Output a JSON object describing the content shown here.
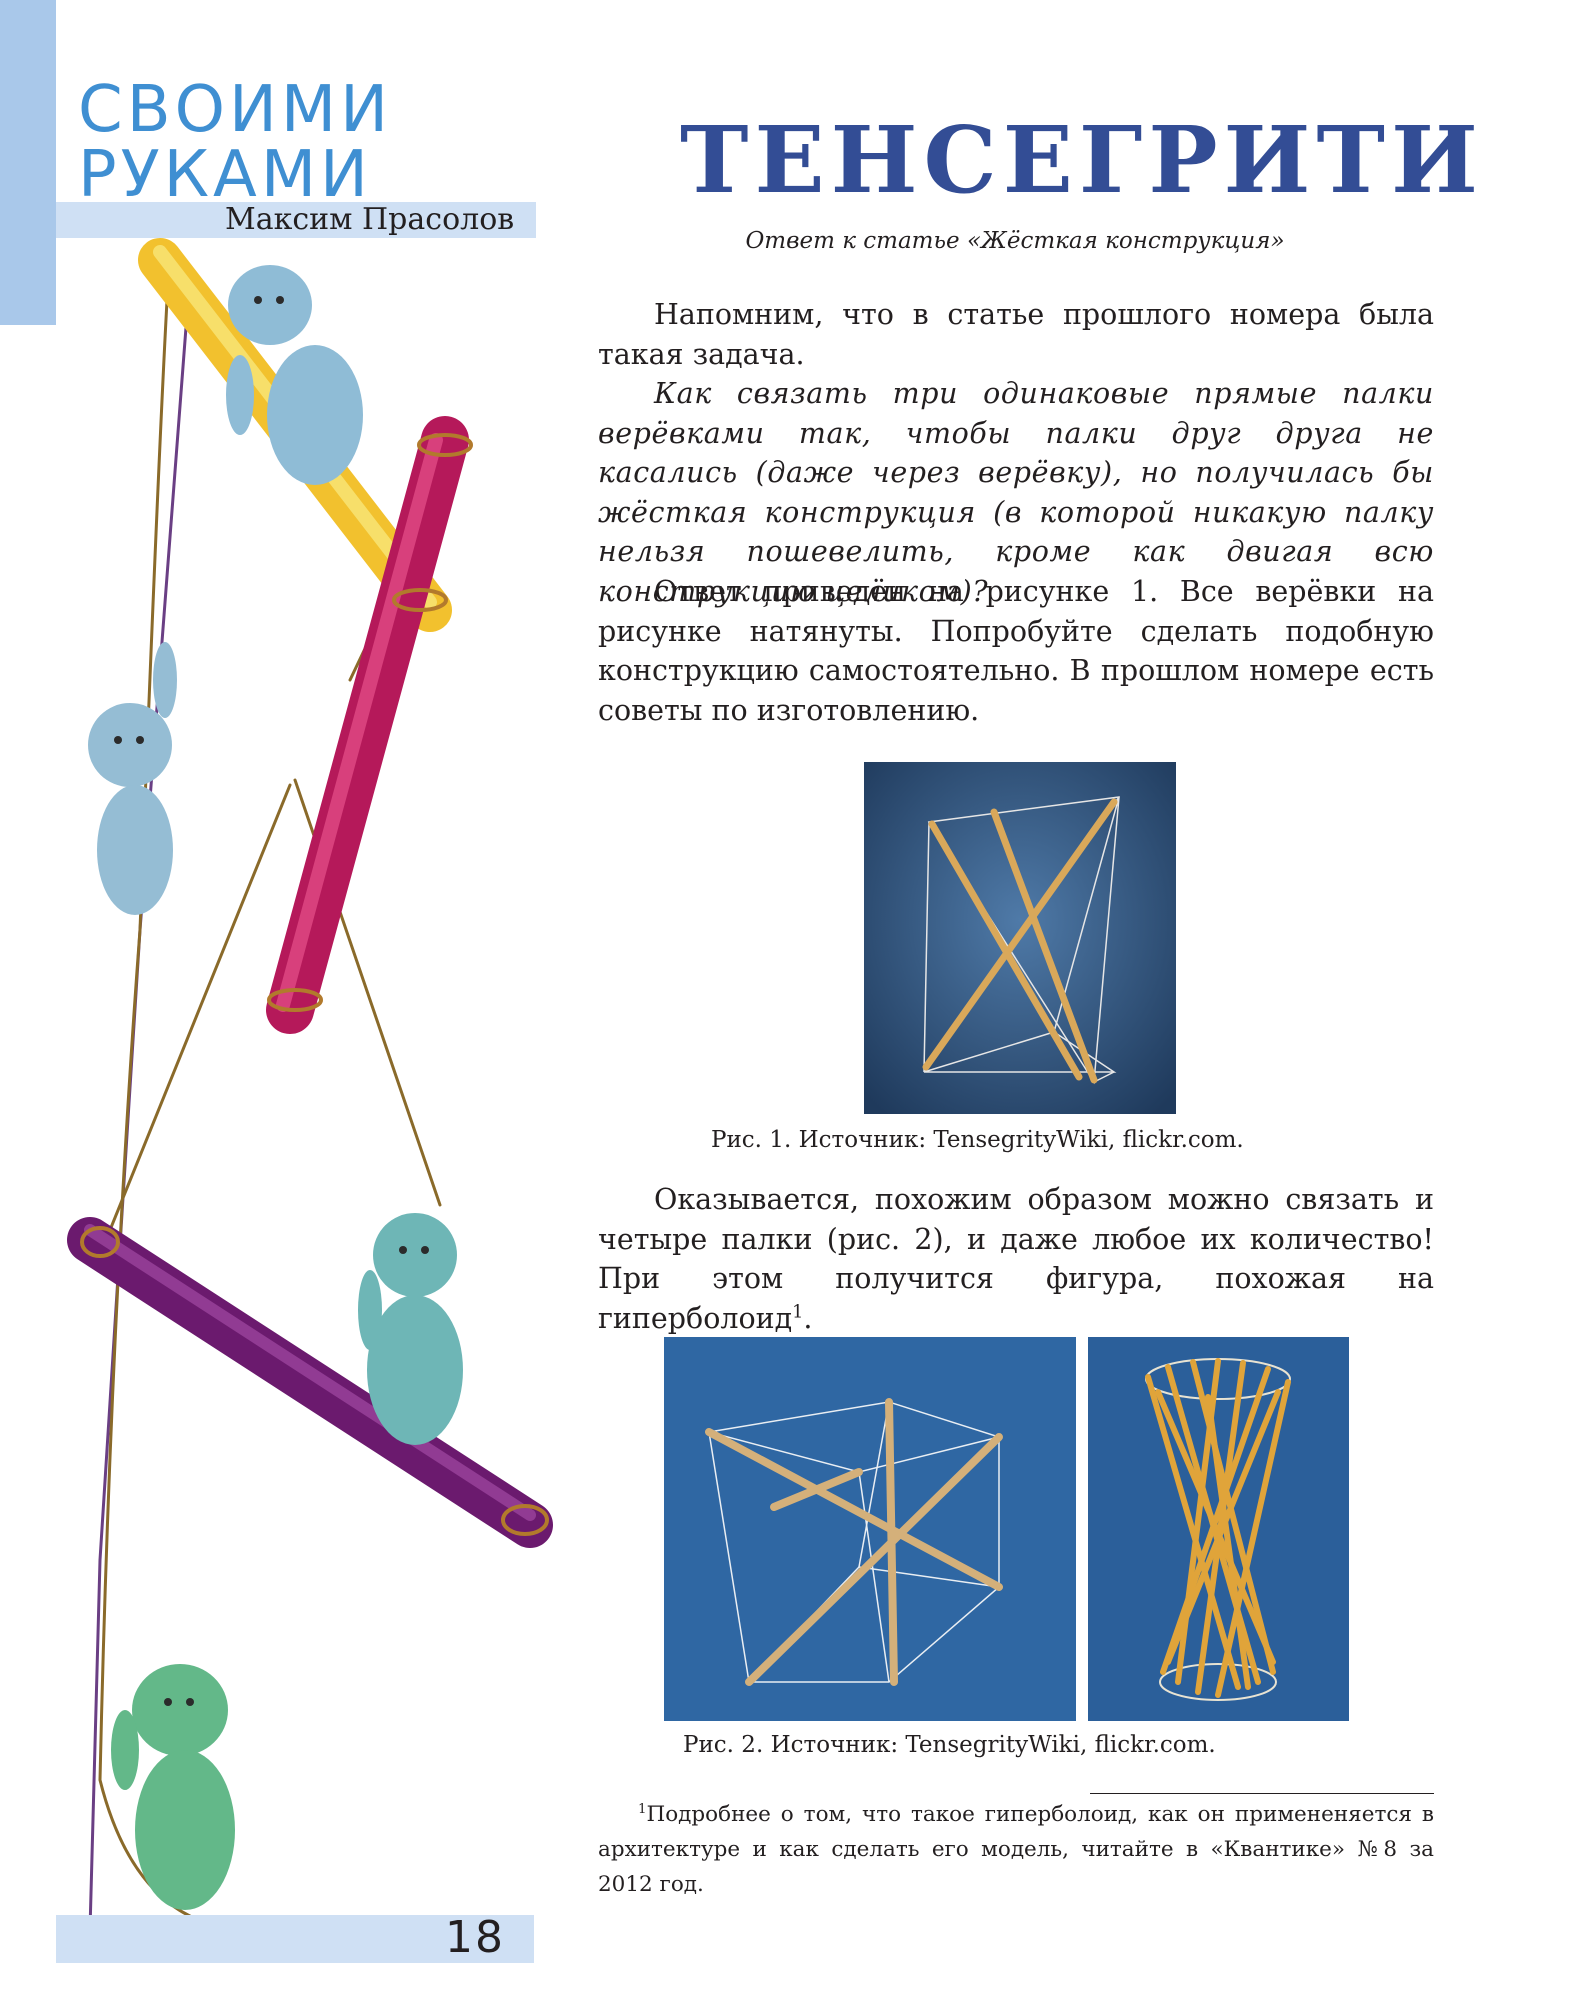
{
  "header": {
    "section_line1": "СВОИМИ",
    "section_line2": "РУКАМИ",
    "author": "Максим Прасолов"
  },
  "article": {
    "title": "ТЕНСЕГРИТИ",
    "subtitle": "Ответ к статье «Жёсткая конструкция»",
    "paragraphs": {
      "p1": "Напомним, что в статье прошлого номера была такая задача.",
      "p2": "Как связать три одинаковые прямые палки верёвками так, чтобы палки друг друга не касались (даже через верёвку), но получилась бы жёсткая конструкция (в которой никакую палку нельзя пошевелить, кроме как двигая всю конструкцию целиком)?",
      "p3": "Ответ приведён на рисунке 1. Все верёвки на рисунке натянуты. Попробуйте сделать подобную конструкцию самостоятельно. В прошлом номере есть советы по изготовлению.",
      "p4": "Оказывается, похожим образом можно связать и четыре палки (рис. 2), и даже любое их количество! При этом получится фигура, похожая на гиперболоид",
      "p4_sup": "1",
      "p4_end": "."
    },
    "figure1_caption": "Рис. 1. Источник: TensegrityWiki, flickr.com.",
    "figure2_caption": "Рис. 2. Источник: TensegrityWiki, flickr.com.",
    "footnote_mark": "1",
    "footnote": "Подробнее о том, что такое  гиперболоид, как он примененяется в архитектуре и как сделать его модель, читайте в «Квантике» №8 за 2012 год."
  },
  "page_number": "18",
  "colors": {
    "accent_blue": "#3f8fd2",
    "band_blue": "#cfe0f4",
    "strip_blue": "#a9c8ea",
    "title_blue": "#334d95",
    "photo_bg": "#2d5c8e"
  }
}
